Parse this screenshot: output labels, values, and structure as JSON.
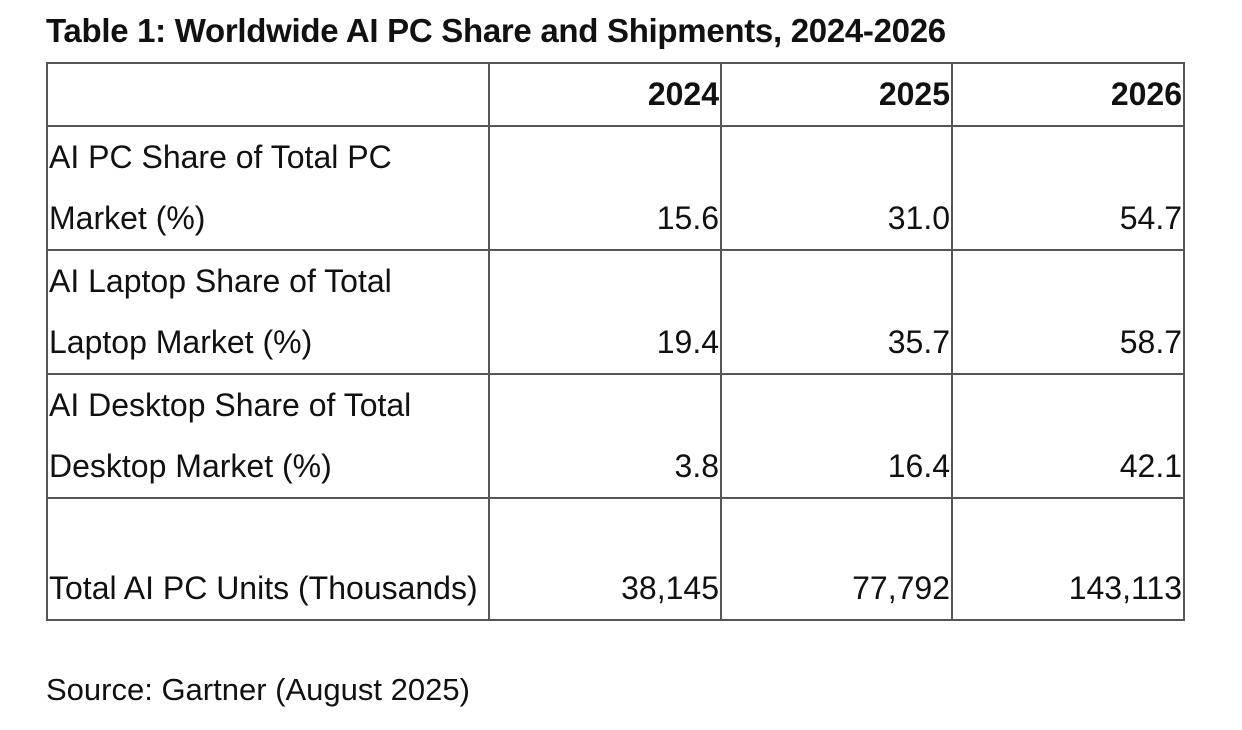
{
  "title": "Table 1: Worldwide AI PC Share and Shipments, 2024-2026",
  "columns": [
    "",
    "2024",
    "2025",
    "2026"
  ],
  "rows": [
    {
      "label": "AI PC Share of Total PC Market (%)",
      "values": [
        "15.6",
        "31.0",
        "54.7"
      ]
    },
    {
      "label": "AI Laptop Share of Total Laptop Market (%)",
      "values": [
        "19.4",
        "35.7",
        "58.7"
      ]
    },
    {
      "label": "AI Desktop Share of Total Desktop Market (%)",
      "values": [
        "3.8",
        "16.4",
        "42.1"
      ]
    },
    {
      "label": "Total AI PC Units (Thousands)",
      "values": [
        "38,145",
        "77,792",
        "143,113"
      ]
    }
  ],
  "source": "Source: Gartner (August 2025)"
}
